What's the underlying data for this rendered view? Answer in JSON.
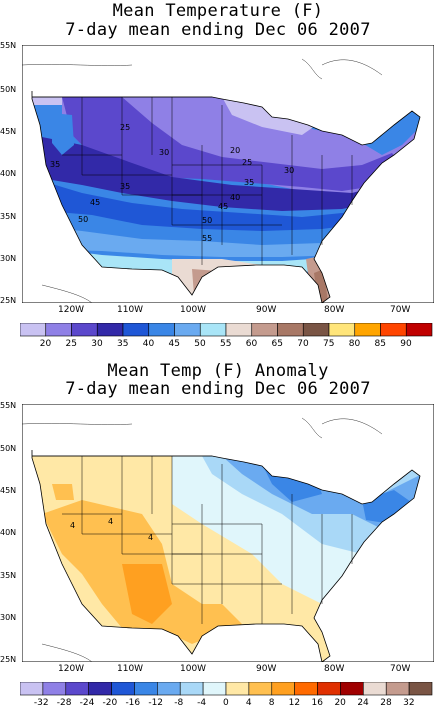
{
  "panels": [
    {
      "title_line1": "Mean Temperature (F)",
      "title_line2": "7-day mean ending Dec 06 2007",
      "lat_labels": [
        "55N",
        "50N",
        "45N",
        "40N",
        "35N",
        "30N",
        "25N"
      ],
      "lon_labels": [
        "120W",
        "110W",
        "100W",
        "90W",
        "80W",
        "70W"
      ],
      "contour_labels": [
        "25",
        "30",
        "20",
        "25",
        "35",
        "30",
        "35",
        "40",
        "45",
        "35",
        "45",
        "50",
        "50",
        "55"
      ],
      "legend_labels": [
        "20",
        "25",
        "30",
        "35",
        "40",
        "45",
        "50",
        "55",
        "60",
        "65",
        "70",
        "75",
        "80",
        "85",
        "90"
      ],
      "legend_colors": [
        "#c9c2f2",
        "#8f80e6",
        "#5b48cc",
        "#3229a8",
        "#1f57d6",
        "#3a86e6",
        "#6aaaf0",
        "#a9e5f7",
        "#eadbd3",
        "#c49b8e",
        "#a87866",
        "#7a5545",
        "#ffe57a",
        "#ffa500",
        "#ff4500",
        "#c00000"
      ]
    },
    {
      "title_line1": "Mean Temp (F) Anomaly",
      "title_line2": "7-day mean ending Dec 06 2007",
      "lat_labels": [
        "55N",
        "50N",
        "45N",
        "40N",
        "35N",
        "30N",
        "25N"
      ],
      "lon_labels": [
        "120W",
        "110W",
        "100W",
        "90W",
        "80W",
        "70W"
      ],
      "contour_labels": [
        "4",
        "4",
        "4"
      ],
      "legend_labels": [
        "-32",
        "-28",
        "-24",
        "-20",
        "-16",
        "-12",
        "-8",
        "-4",
        "0",
        "4",
        "8",
        "12",
        "16",
        "20",
        "24",
        "28",
        "32"
      ],
      "legend_colors": [
        "#c9c2f2",
        "#8f80e6",
        "#5b48cc",
        "#3229a8",
        "#1f57d6",
        "#3a86e6",
        "#6aaaf0",
        "#a9d8f7",
        "#e0f6fb",
        "#ffe8a6",
        "#ffc050",
        "#ffa020",
        "#ff6a00",
        "#e03000",
        "#a00000",
        "#eadbd3",
        "#c49b8e",
        "#7a5545"
      ]
    }
  ]
}
